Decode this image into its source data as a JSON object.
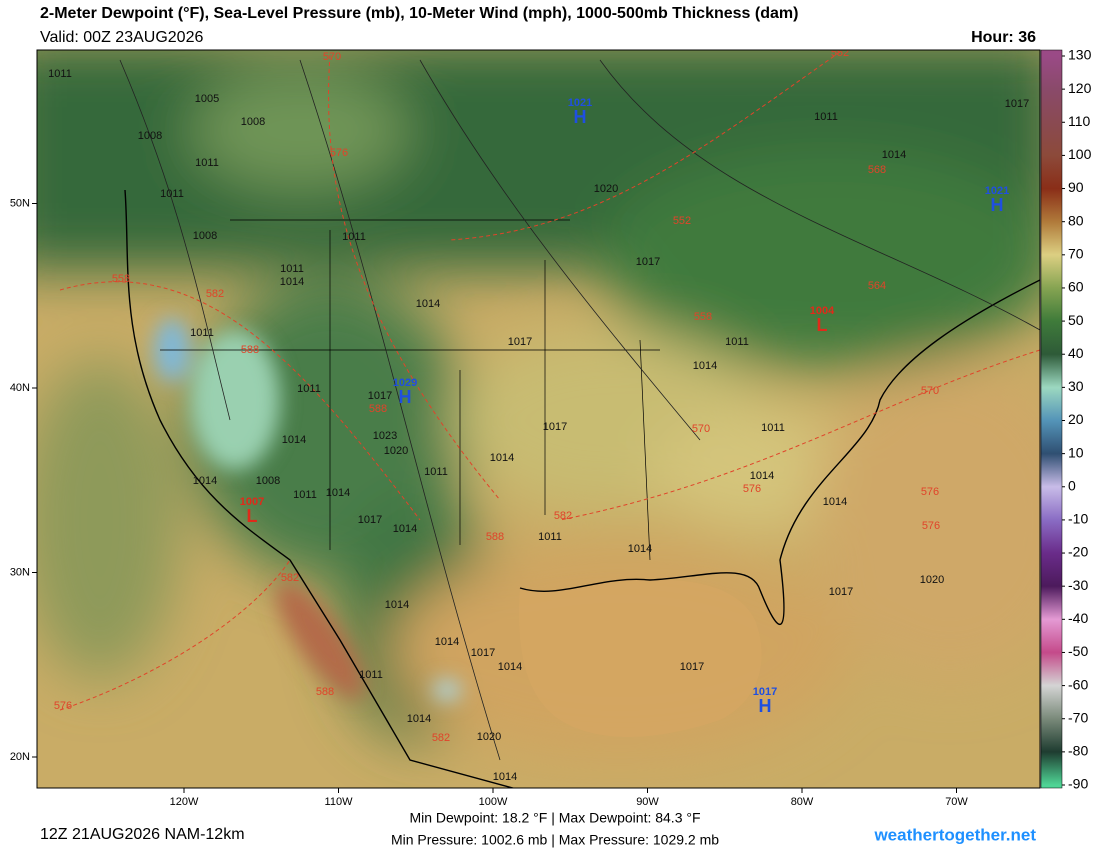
{
  "header": {
    "title": "2-Meter Dewpoint (°F), Sea-Level Pressure (mb), 10-Meter Wind (mph), 1000-500mb Thickness (dam)",
    "valid": "Valid: 00Z 23AUG2026",
    "hour": "Hour: 36"
  },
  "map": {
    "lat_ticks": [
      {
        "value": 50,
        "label": "50N"
      },
      {
        "value": 40,
        "label": "40N"
      },
      {
        "value": 30,
        "label": "30N"
      },
      {
        "value": 20,
        "label": "20N"
      }
    ],
    "lon_ticks": [
      {
        "value": -120,
        "label": "120W"
      },
      {
        "value": -110,
        "label": "110W"
      },
      {
        "value": -100,
        "label": "100W"
      },
      {
        "value": -90,
        "label": "90W"
      },
      {
        "value": -80,
        "label": "80W"
      },
      {
        "value": -70,
        "label": "70W"
      }
    ],
    "isobar_labels": [
      1011,
      1005,
      1008,
      1008,
      1011,
      1011,
      1008,
      1011,
      1014,
      1011,
      1014,
      1017,
      1011,
      1011,
      1017,
      1023,
      1020,
      1014,
      1011,
      1014,
      1017,
      1014,
      1008,
      1011,
      1014,
      1017,
      1014,
      1011,
      1014,
      1011,
      1014,
      1011,
      1014,
      1014,
      1017,
      1011,
      1014,
      1020,
      1017,
      1020,
      1017,
      1017,
      1014,
      1014,
      1017,
      1014,
      1011,
      1014,
      1020,
      1014
    ],
    "thickness_labels": [
      570,
      552,
      576,
      568,
      552,
      558,
      582,
      588,
      558,
      564,
      570,
      576,
      576,
      576,
      570,
      582,
      588,
      588,
      582,
      588,
      576,
      582
    ],
    "pressure_centers": [
      {
        "symbol": "H",
        "value": 1021
      },
      {
        "symbol": "H",
        "value": 1029
      },
      {
        "symbol": "H",
        "value": 1021
      },
      {
        "symbol": "H",
        "value": 1017
      },
      {
        "symbol": "L",
        "value": 1007
      },
      {
        "symbol": "L",
        "value": 1004
      }
    ]
  },
  "colorbar": {
    "ticks": [
      130,
      120,
      110,
      100,
      90,
      80,
      70,
      60,
      50,
      40,
      30,
      20,
      10,
      0,
      -10,
      -20,
      -30,
      -40,
      -50,
      -60,
      -70,
      -80,
      -90
    ],
    "colors": [
      "#9a4a86",
      "#8a4a6a",
      "#8a4a52",
      "#8c4a3a",
      "#8a2e18",
      "#b07a3a",
      "#dccf82",
      "#86a452",
      "#3f7b3a",
      "#2e5a38",
      "#9cd8c0",
      "#5494b8",
      "#2f4f72",
      "#c8bce8",
      "#8a6cc4",
      "#6a2c8a",
      "#4c1a5c",
      "#e49ad4",
      "#c44a8a",
      "#d4d4d4",
      "#7a8a7a",
      "#1e3c30",
      "#4fd495"
    ]
  },
  "footer": {
    "run": "12Z 21AUG2026 NAM-12km",
    "dewpoint": "Min Dewpoint:  18.2 °F | Max Dewpoint:  84.3 °F",
    "pressure": "Min Pressure: 1002.6 mb | Max Pressure: 1029.2 mb",
    "site": "weathertogether.net"
  }
}
